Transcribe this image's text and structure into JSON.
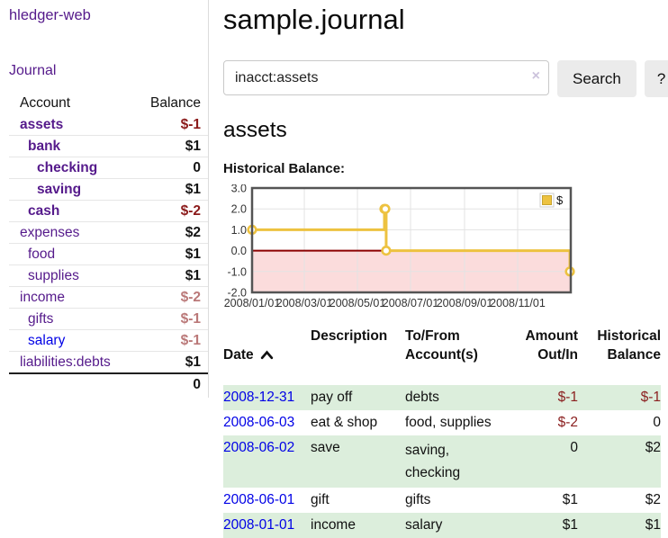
{
  "sidebar": {
    "app_title": "hledger-web",
    "journal_link": "Journal",
    "accounts_table": {
      "headers": {
        "account": "Account",
        "balance": "Balance"
      },
      "rows": [
        {
          "name": "assets",
          "balance": "$-1"
        },
        {
          "name": "bank",
          "balance": "$1"
        },
        {
          "name": "checking",
          "balance": "0"
        },
        {
          "name": "saving",
          "balance": "$1"
        },
        {
          "name": "cash",
          "balance": "$-2"
        },
        {
          "name": "expenses",
          "balance": "$2"
        },
        {
          "name": "food",
          "balance": "$1"
        },
        {
          "name": "supplies",
          "balance": "$1"
        },
        {
          "name": "income",
          "balance": "$-2"
        },
        {
          "name": "gifts",
          "balance": "$-1"
        },
        {
          "name": "salary",
          "balance": "$-1"
        },
        {
          "name": "liabilities:debts",
          "balance": "$1"
        }
      ],
      "total": "0"
    }
  },
  "header": {
    "title": "sample.journal"
  },
  "search": {
    "value": "inacct:assets",
    "clear_icon": "×",
    "button_label": "Search",
    "help_label": "?"
  },
  "account_page": {
    "title": "assets",
    "chart_label": "Historical Balance:"
  },
  "chart_data": {
    "type": "line",
    "title": "Historical Balance",
    "x_range": [
      "2008/01/01",
      "2009/01/01"
    ],
    "ylim": [
      -2,
      3
    ],
    "y_ticks": [
      "3.0",
      "2.0",
      "1.0",
      "0.0",
      "-1.0",
      "-2.0"
    ],
    "x_ticks": [
      "2008/01/01",
      "2008/03/01",
      "2008/05/01",
      "2008/07/01",
      "2008/09/01",
      "2008/11/01"
    ],
    "series": [
      {
        "name": "$",
        "color": "#EDC240",
        "steps": true,
        "points": [
          {
            "date": "2008/01/01",
            "value": 1
          },
          {
            "date": "2008/06/01",
            "value": 2
          },
          {
            "date": "2008/06/02",
            "value": 2
          },
          {
            "date": "2008/06/03",
            "value": 0
          },
          {
            "date": "2008/12/31",
            "value": -1
          }
        ]
      }
    ],
    "legend": {
      "label": "$",
      "position": "top-right"
    },
    "negative_region_color": "#FBDCDC",
    "zero_line_color": "#8B0000",
    "grid": true
  },
  "register_table": {
    "headers": {
      "date": "Date",
      "description": "Description",
      "to_from": "To/From\nAccount(s)",
      "amount": "Amount\nOut/In",
      "historical": "Historical\nBalance"
    },
    "sort": {
      "column": "Date",
      "direction": "ascending"
    },
    "rows": [
      {
        "date": "2008-12-31",
        "description": "pay off",
        "accounts": "debts",
        "amount": "$-1",
        "balance": "$-1"
      },
      {
        "date": "2008-06-03",
        "description": "eat & shop",
        "accounts": "food, supplies",
        "amount": "$-2",
        "balance": "0"
      },
      {
        "date": "2008-06-02",
        "description": "save",
        "accounts": "saving,\nchecking",
        "amount": "0",
        "balance": "$2"
      },
      {
        "date": "2008-06-01",
        "description": "gift",
        "accounts": "gifts",
        "amount": "$1",
        "balance": "$2"
      },
      {
        "date": "2008-01-01",
        "description": "income",
        "accounts": "salary",
        "amount": "$1",
        "balance": "$1"
      }
    ]
  },
  "colors": {
    "link_purple": "#551A8B",
    "link_blue": "#0000E6",
    "negative_strong": "#8B1A1A",
    "negative_muted": "#BA7878",
    "negative_table": "#8B2020",
    "row_green": "#DCEEDC",
    "chart_line": "#EDC240",
    "chart_negative_bg": "#FBDCDC",
    "chart_zero_line": "#8B0000",
    "button_bg": "#EBEBEB"
  }
}
